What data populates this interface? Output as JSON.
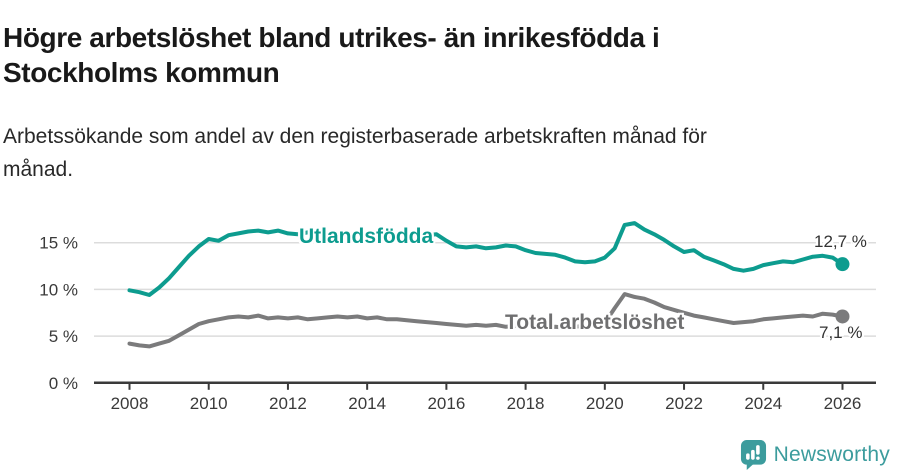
{
  "header": {
    "title_line1": "Högre arbetslöshet bland utrikes- än inrikesfödda i",
    "title_line2": "Stockholms kommun",
    "subtitle_line1": "Arbetssökande som andel av den registerbaserade arbetskraften månad för",
    "subtitle_line2": "månad."
  },
  "chart_data": {
    "type": "line",
    "title": "Högre arbetslöshet bland utrikes- än inrikesfödda i Stockholms kommun",
    "subtitle": "Arbetssökande som andel av den registerbaserade arbetskraften månad för månad.",
    "unit": "%",
    "x_start_year": 2008,
    "x_step_years": 0.25,
    "x_end_year": 2026,
    "x_tick_labels": [
      "2008",
      "2010",
      "2012",
      "2014",
      "2016",
      "2018",
      "2020",
      "2022",
      "2024",
      "2026"
    ],
    "x_tick_years": [
      2008,
      2010,
      2012,
      2014,
      2016,
      2018,
      2020,
      2022,
      2024,
      2026
    ],
    "y_tick_labels": [
      "0 %",
      "5 %",
      "10 %",
      "15 %"
    ],
    "y_tick_values": [
      0,
      5,
      10,
      15
    ],
    "ylim": [
      0,
      18
    ],
    "grid": "horizontal-only",
    "legend": "inline-labels",
    "colors": {
      "grid": "#dcdcdc",
      "axis": "#3a3a3a",
      "tick_text": "#3a3a3a",
      "end_label_text": "#333333"
    },
    "series": [
      {
        "name": "Utlandsfödda",
        "label": "Utlandsfödda",
        "color": "#0d9c8f",
        "end_label": "12,7 %",
        "end_value": 12.7,
        "values": [
          9.9,
          9.7,
          9.4,
          10.2,
          11.2,
          12.4,
          13.6,
          14.6,
          15.4,
          15.2,
          15.8,
          16.0,
          16.2,
          16.3,
          16.1,
          16.3,
          16.0,
          15.9,
          16.1,
          15.8,
          15.9,
          16.0,
          15.8,
          15.9,
          15.7,
          15.8,
          15.6,
          15.7,
          15.6,
          15.7,
          15.8,
          15.9,
          15.2,
          14.6,
          14.5,
          14.6,
          14.4,
          14.5,
          14.7,
          14.6,
          14.2,
          13.9,
          13.8,
          13.7,
          13.4,
          13.0,
          12.9,
          13.0,
          13.4,
          14.4,
          16.9,
          17.1,
          16.4,
          15.9,
          15.3,
          14.6,
          14.0,
          14.2,
          13.5,
          13.1,
          12.7,
          12.2,
          12.0,
          12.2,
          12.6,
          12.8,
          13.0,
          12.9,
          13.2,
          13.5,
          13.6,
          13.4,
          12.7
        ]
      },
      {
        "name": "Total arbetslöshet",
        "label": "Total arbetslöshet",
        "color": "#7b7b7c",
        "label_color": "#6f6f70",
        "end_label": "7,1 %",
        "end_value": 7.1,
        "values": [
          4.2,
          4.0,
          3.9,
          4.2,
          4.5,
          5.1,
          5.7,
          6.3,
          6.6,
          6.8,
          7.0,
          7.1,
          7.0,
          7.2,
          6.9,
          7.0,
          6.9,
          7.0,
          6.8,
          6.9,
          7.0,
          7.1,
          7.0,
          7.1,
          6.9,
          7.0,
          6.8,
          6.8,
          6.7,
          6.6,
          6.5,
          6.4,
          6.3,
          6.2,
          6.1,
          6.2,
          6.1,
          6.2,
          6.0,
          6.1,
          6.0,
          6.1,
          5.9,
          6.0,
          5.9,
          6.0,
          6.1,
          6.2,
          6.4,
          8.0,
          9.5,
          9.2,
          9.0,
          8.6,
          8.1,
          7.8,
          7.5,
          7.2,
          7.0,
          6.8,
          6.6,
          6.4,
          6.5,
          6.6,
          6.8,
          6.9,
          7.0,
          7.1,
          7.2,
          7.1,
          7.4,
          7.3,
          7.1
        ]
      }
    ]
  },
  "footer": {
    "logo_text": "Newsworthy",
    "logo_color": "#3c9c9d"
  }
}
